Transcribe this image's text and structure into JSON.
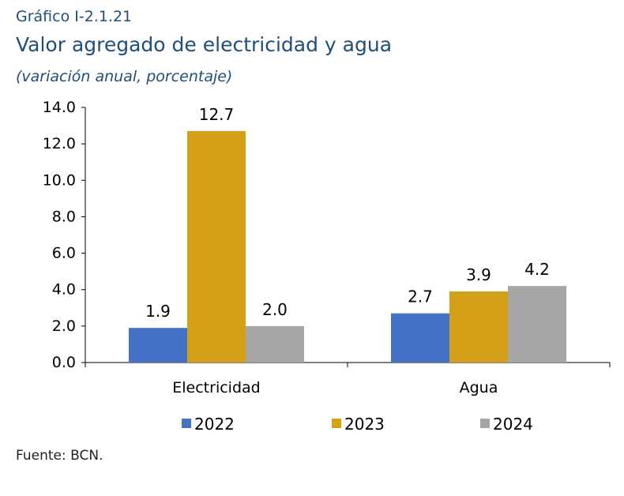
{
  "header": {
    "kicker": "Gráfico I-2.1.21",
    "title": "Valor agregado de electricidad y agua",
    "subtitle": "(variación anual, porcentaje)"
  },
  "source": "Fuente: BCN.",
  "chart_data": {
    "type": "bar",
    "title": "Valor agregado de electricidad y agua",
    "subtitle": "(variación anual, porcentaje)",
    "categories": [
      "Electricidad",
      "Agua"
    ],
    "series": [
      {
        "name": "2022",
        "color": "#4472c4",
        "values": [
          1.9,
          2.7
        ],
        "labels": [
          "1.9",
          "2.7"
        ]
      },
      {
        "name": "2023",
        "color": "#d4a017",
        "values": [
          12.7,
          3.9
        ],
        "labels": [
          "12.7",
          "3.9"
        ]
      },
      {
        "name": "2024",
        "color": "#a6a6a6",
        "values": [
          2.0,
          4.2
        ],
        "labels": [
          "2.0",
          "4.2"
        ]
      }
    ],
    "ylim": [
      0,
      14
    ],
    "yticks": [
      "0.0",
      "2.0",
      "4.0",
      "6.0",
      "8.0",
      "10.0",
      "12.0",
      "14.0"
    ],
    "legend_position": "bottom",
    "grid": false
  }
}
